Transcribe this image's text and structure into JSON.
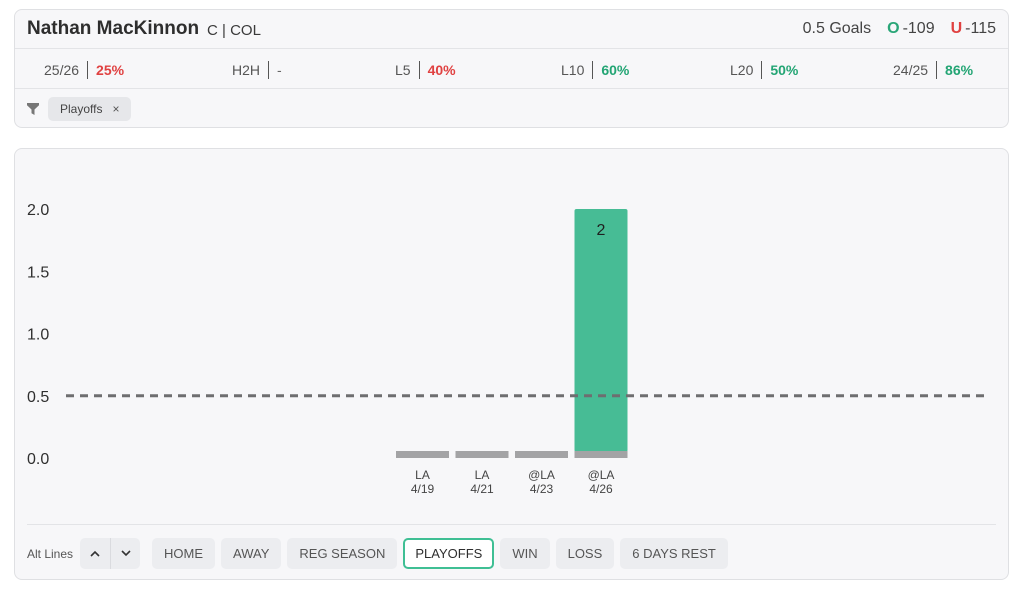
{
  "header": {
    "player_name": "Nathan MacKinnon",
    "position_team": "C | COL",
    "line_label": "0.5 Goals",
    "over_letter": "O",
    "over_odds": "-109",
    "under_letter": "U",
    "under_odds": "-115"
  },
  "stats": [
    {
      "label": "25/26",
      "value": "25%",
      "tone": "red"
    },
    {
      "label": "H2H",
      "value": "-",
      "tone": "dash"
    },
    {
      "label": "L5",
      "value": "40%",
      "tone": "red"
    },
    {
      "label": "L10",
      "value": "60%",
      "tone": "green"
    },
    {
      "label": "L20",
      "value": "50%",
      "tone": "green"
    },
    {
      "label": "24/25",
      "value": "86%",
      "tone": "green"
    }
  ],
  "filter": {
    "chip_label": "Playoffs",
    "chip_close": "×"
  },
  "controls": {
    "alt_lines_label": "Alt Lines",
    "up_glyph": "⌃",
    "down_glyph": "⌄",
    "buttons": [
      {
        "label": "HOME",
        "active": false
      },
      {
        "label": "AWAY",
        "active": false
      },
      {
        "label": "REG SEASON",
        "active": false
      },
      {
        "label": "PLAYOFFS",
        "active": true
      },
      {
        "label": "WIN",
        "active": false
      },
      {
        "label": "LOSS",
        "active": false
      },
      {
        "label": "6 DAYS REST",
        "active": false
      }
    ]
  },
  "colors": {
    "hit": "#47bc95",
    "miss": "#a3a3a5",
    "line": "#6e6e70",
    "accent": "#3fbf94"
  },
  "chart_data": {
    "type": "bar",
    "categories": [
      "LA 4/19",
      "LA 4/21",
      "@LA 4/23",
      "@LA 4/26"
    ],
    "category_opponent": [
      "LA",
      "LA",
      "@LA",
      "@LA"
    ],
    "category_date": [
      "4/19",
      "4/21",
      "4/23",
      "4/26"
    ],
    "values": [
      0,
      0,
      0,
      2
    ],
    "data_labels": [
      "",
      "",
      "",
      "2"
    ],
    "yticks": [
      "0.0",
      "0.5",
      "1.0",
      "1.5",
      "2.0"
    ],
    "ylim": [
      0,
      2
    ],
    "reference_line": 0.5,
    "grid": false,
    "legend": "none"
  }
}
